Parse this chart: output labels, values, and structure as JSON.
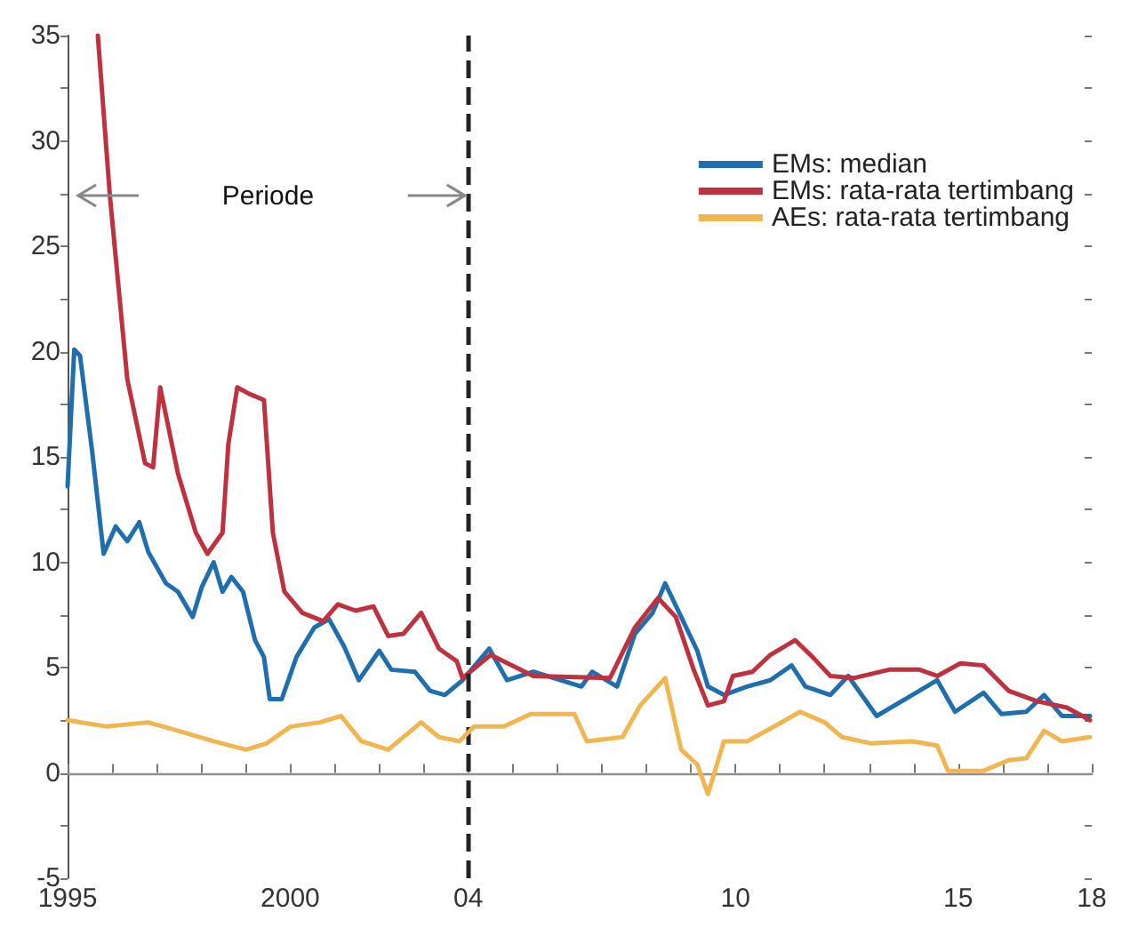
{
  "chart_data": {
    "type": "line",
    "annotations": [
      "Periode"
    ],
    "xlim": [
      1995,
      2018
    ],
    "xticks": [
      {
        "value": 1995,
        "label": "1995"
      },
      {
        "value": 1996,
        "label": null
      },
      {
        "value": 1997,
        "label": null
      },
      {
        "value": 1998,
        "label": null
      },
      {
        "value": 1999,
        "label": null
      },
      {
        "value": 2000,
        "label": "2000"
      },
      {
        "value": 2001,
        "label": null
      },
      {
        "value": 2002,
        "label": null
      },
      {
        "value": 2003,
        "label": null
      },
      {
        "value": 2004,
        "label": "04"
      },
      {
        "value": 2005,
        "label": null
      },
      {
        "value": 2006,
        "label": null
      },
      {
        "value": 2007,
        "label": null
      },
      {
        "value": 2008,
        "label": null
      },
      {
        "value": 2009,
        "label": null
      },
      {
        "value": 2010,
        "label": "10"
      },
      {
        "value": 2011,
        "label": null
      },
      {
        "value": 2012,
        "label": null
      },
      {
        "value": 2013,
        "label": null
      },
      {
        "value": 2014,
        "label": null
      },
      {
        "value": 2015,
        "label": "15"
      },
      {
        "value": 2016,
        "label": null
      },
      {
        "value": 2017,
        "label": null
      },
      {
        "value": 2018,
        "label": "18"
      }
    ],
    "ylim": [
      -5,
      35
    ],
    "yticks": [
      -5,
      {
        "value": -2.5,
        "label": null
      },
      0,
      {
        "value": 2.5,
        "label": null
      },
      5,
      {
        "value": 7.5,
        "label": null
      },
      10,
      {
        "value": 12.5,
        "label": null
      },
      15,
      {
        "value": 17.5,
        "label": null
      },
      20,
      {
        "value": 22.5,
        "label": null
      },
      25,
      {
        "value": 27.5,
        "label": null
      },
      30,
      {
        "value": 32.5,
        "label": null
      },
      35
    ],
    "grid": false,
    "legend": "top right",
    "marker": "none",
    "line_style": "solid",
    "ref_lines": [
      {
        "axis": "y",
        "value": 0,
        "color": "#909090",
        "line_style": "solid"
      },
      {
        "axis": "x",
        "value": 2004,
        "color": "#222222",
        "line_style": "dashed"
      }
    ],
    "series": [
      {
        "name": "EMs: median",
        "color": "#1f6fb0",
        "x": [
          1995.0,
          1995.15,
          1995.28,
          1995.55,
          1995.81,
          1996.08,
          1996.34,
          1996.61,
          1996.81,
          1997.21,
          1997.48,
          1997.81,
          1998.01,
          1998.28,
          1998.48,
          1998.68,
          1998.94,
          1999.21,
          1999.41,
          1999.54,
          1999.81,
          2000.14,
          2000.54,
          2000.87,
          2001.21,
          2001.54,
          2002.0,
          2002.27,
          2002.8,
          2003.14,
          2003.47,
          2003.87,
          2004.47,
          2004.87,
          2005.46,
          2006.54,
          2006.78,
          2007.34,
          2007.74,
          2008.14,
          2008.42,
          2008.78,
          2009.14,
          2009.38,
          2009.74,
          2010.26,
          2010.78,
          2011.26,
          2011.57,
          2012.13,
          2012.53,
          2013.17,
          2013.73,
          2014.53,
          2014.93,
          2015.57,
          2015.97,
          2016.53,
          2016.93,
          2017.33,
          2017.96
        ],
        "values": [
          13.6,
          20.1,
          19.8,
          15.3,
          10.4,
          11.7,
          11.0,
          11.9,
          10.5,
          9.0,
          8.6,
          7.4,
          8.8,
          10.0,
          8.6,
          9.3,
          8.6,
          6.3,
          5.5,
          3.5,
          3.5,
          5.5,
          6.9,
          7.3,
          6.0,
          4.4,
          5.8,
          4.9,
          4.8,
          3.9,
          3.7,
          4.4,
          5.9,
          4.4,
          4.8,
          4.1,
          4.8,
          4.1,
          6.6,
          7.6,
          9.0,
          7.4,
          5.8,
          4.1,
          3.7,
          4.1,
          4.4,
          5.1,
          4.1,
          3.7,
          4.6,
          2.7,
          3.4,
          4.4,
          2.9,
          3.8,
          2.8,
          2.9,
          3.7,
          2.7,
          2.7
        ]
      },
      {
        "name": "EMs: rata-rata tertimbang",
        "color": "#c0313f",
        "x": [
          1995.68,
          1995.95,
          1996.34,
          1996.74,
          1996.92,
          1997.08,
          1997.48,
          1997.88,
          1998.14,
          1998.48,
          1998.61,
          1998.81,
          1999.07,
          1999.41,
          1999.61,
          1999.87,
          2000.27,
          2000.74,
          2001.07,
          2001.47,
          2001.87,
          2002.2,
          2002.54,
          2002.94,
          2003.34,
          2003.74,
          2003.87,
          2004.5,
          2005.46,
          2007.18,
          2007.74,
          2008.26,
          2008.66,
          2009.06,
          2009.38,
          2009.74,
          2009.94,
          2010.38,
          2010.78,
          2011.34,
          2011.73,
          2012.13,
          2012.65,
          2013.45,
          2014.13,
          2014.53,
          2015.05,
          2015.57,
          2016.13,
          2016.77,
          2017.44,
          2017.96
        ],
        "values": [
          35.0,
          27.4,
          18.7,
          14.7,
          14.5,
          18.3,
          14.2,
          11.4,
          10.4,
          11.4,
          15.6,
          18.3,
          18.0,
          17.7,
          11.4,
          8.6,
          7.6,
          7.2,
          8.0,
          7.7,
          7.9,
          6.5,
          6.6,
          7.6,
          5.9,
          5.3,
          4.5,
          5.6,
          4.6,
          4.5,
          6.9,
          8.3,
          7.4,
          4.9,
          3.2,
          3.4,
          4.6,
          4.8,
          5.6,
          6.3,
          5.5,
          4.6,
          4.5,
          4.9,
          4.9,
          4.6,
          5.2,
          5.1,
          3.9,
          3.4,
          3.1,
          2.5
        ]
      },
      {
        "name": "AEs: rata-rata tertimbang",
        "color": "#f2b650",
        "x": [
          1995.0,
          1995.88,
          1996.81,
          1997.48,
          1998.28,
          1999.01,
          1999.47,
          2000.01,
          2000.67,
          2001.14,
          2001.6,
          2002.2,
          2002.94,
          2003.34,
          2003.8,
          2004.13,
          2004.8,
          2005.4,
          2006.38,
          2006.66,
          2007.46,
          2007.86,
          2008.42,
          2008.78,
          2009.14,
          2009.38,
          2009.74,
          2010.26,
          2010.78,
          2011.45,
          2012.0,
          2012.39,
          2013.05,
          2013.97,
          2014.53,
          2014.77,
          2015.57,
          2016.13,
          2016.53,
          2016.93,
          2017.33,
          2017.96
        ],
        "values": [
          2.5,
          2.2,
          2.4,
          2.0,
          1.5,
          1.1,
          1.4,
          2.2,
          2.4,
          2.7,
          1.5,
          1.1,
          2.4,
          1.7,
          1.5,
          2.2,
          2.2,
          2.8,
          2.8,
          1.5,
          1.7,
          3.2,
          4.5,
          1.1,
          0.4,
          -1.0,
          1.5,
          1.5,
          2.1,
          2.9,
          2.4,
          1.7,
          1.4,
          1.5,
          1.3,
          0.1,
          0.1,
          0.6,
          0.7,
          2.0,
          1.5,
          1.7
        ]
      }
    ]
  }
}
